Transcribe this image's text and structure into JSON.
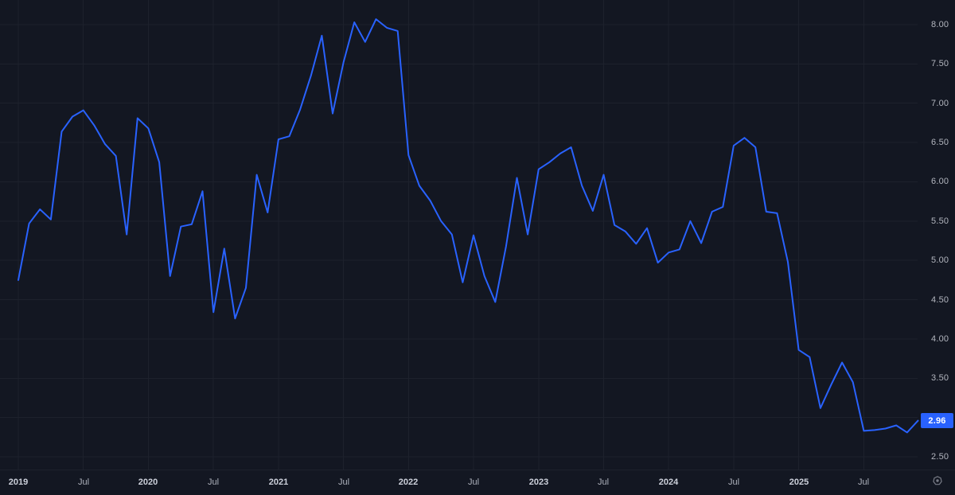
{
  "theme": {
    "background": "#131722",
    "grid_color": "#1d212c",
    "line_color": "#2962ff",
    "axis_text_color": "#b2b5be",
    "axis_major_color": "#ccd0da",
    "axis_minor_color": "#aeb2bc",
    "badge_bg": "#2962ff",
    "badge_text_color": "#ffffff",
    "icon_color": "#787b86"
  },
  "price_scale": {
    "last_price": "2.96",
    "tick_labels": [
      "2.50",
      "3.00",
      "3.50",
      "4.00",
      "4.50",
      "5.00",
      "5.50",
      "6.00",
      "6.50",
      "7.00",
      "7.50",
      "8.00"
    ]
  },
  "time_scale": {
    "labels": [
      {
        "text": "2019",
        "major": true
      },
      {
        "text": "Jul",
        "major": false
      },
      {
        "text": "2020",
        "major": true
      },
      {
        "text": "Jul",
        "major": false
      },
      {
        "text": "2021",
        "major": true
      },
      {
        "text": "Jul",
        "major": false
      },
      {
        "text": "2022",
        "major": true
      },
      {
        "text": "Jul",
        "major": false
      },
      {
        "text": "2023",
        "major": true
      },
      {
        "text": "Jul",
        "major": false
      },
      {
        "text": "2024",
        "major": true
      },
      {
        "text": "Jul",
        "major": false
      },
      {
        "text": "2025",
        "major": true
      },
      {
        "text": "Jul",
        "major": false
      }
    ]
  },
  "icons": {
    "settings": "gear-icon"
  },
  "chart_data": {
    "type": "line",
    "title": "",
    "xlabel": "",
    "ylabel": "",
    "x_start": "2019-01",
    "x_interval": "monthly",
    "x_tick_labels": [
      "2019",
      "Jul",
      "2020",
      "Jul",
      "2021",
      "Jul",
      "2022",
      "Jul",
      "2023",
      "Jul",
      "2024",
      "Jul",
      "2025",
      "Jul"
    ],
    "x_ticks_every_months": 6,
    "y_ticks": [
      2.5,
      3.0,
      3.5,
      4.0,
      4.5,
      5.0,
      5.5,
      6.0,
      6.5,
      7.0,
      7.5,
      8.0
    ],
    "ylim": [
      2.34,
      8.31
    ],
    "grid": true,
    "legend": false,
    "last_value": 2.96,
    "series": [
      {
        "name": "price",
        "values": [
          4.75,
          5.47,
          5.65,
          5.52,
          6.64,
          6.83,
          6.91,
          6.72,
          6.48,
          6.33,
          5.33,
          6.81,
          6.68,
          6.25,
          4.8,
          5.43,
          5.46,
          5.88,
          4.34,
          5.15,
          4.26,
          4.65,
          6.09,
          5.61,
          6.54,
          6.58,
          6.92,
          7.35,
          7.86,
          6.87,
          7.52,
          8.03,
          7.78,
          8.07,
          7.96,
          7.92,
          6.34,
          5.95,
          5.76,
          5.5,
          5.33,
          4.72,
          5.32,
          4.8,
          4.47,
          5.18,
          6.05,
          5.33,
          6.16,
          6.25,
          6.36,
          6.44,
          5.95,
          5.63,
          6.09,
          5.45,
          5.37,
          5.21,
          5.41,
          4.97,
          5.1,
          5.14,
          5.5,
          5.22,
          5.62,
          5.68,
          6.46,
          6.56,
          6.44,
          5.62,
          5.6,
          4.98,
          3.86,
          3.77,
          3.12,
          3.42,
          3.7,
          3.45,
          2.83,
          2.84,
          2.86,
          2.9,
          2.81,
          2.96
        ]
      }
    ]
  }
}
